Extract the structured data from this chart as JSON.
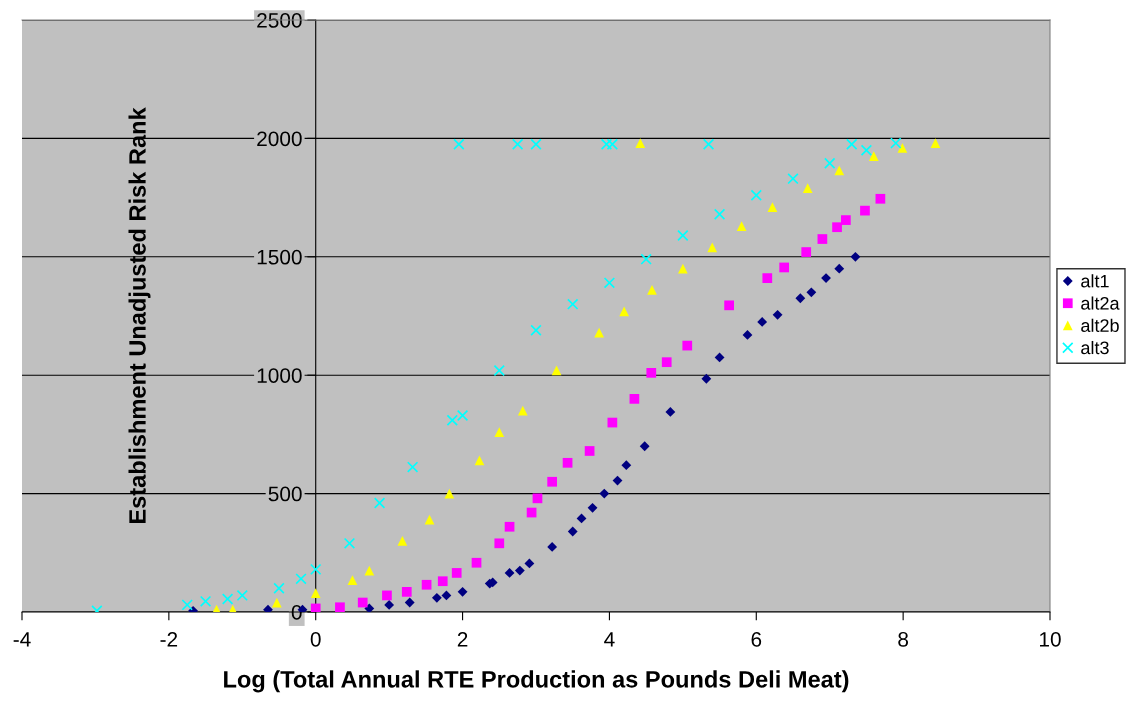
{
  "chart_data": {
    "type": "scatter",
    "xlabel": "Log (Total Annual RTE Production as Pounds Deli Meat)",
    "ylabel": "Establishment Unadjusted Risk Rank",
    "xlim": [
      -4,
      10
    ],
    "ylim": [
      0,
      2500
    ],
    "xticks": [
      -4,
      -2,
      0,
      2,
      4,
      6,
      8,
      10
    ],
    "yticks": [
      0,
      500,
      1000,
      1500,
      2000,
      2500
    ],
    "grid": "y",
    "legend": "right",
    "series": [
      {
        "name": "alt1",
        "color": "#000080",
        "marker": "diamond",
        "x": [
          -1.67,
          -0.65,
          -0.18,
          0.33,
          0.73,
          1.0,
          1.28,
          1.65,
          1.78,
          2.0,
          2.37,
          2.41,
          2.64,
          2.78,
          2.91,
          3.22,
          3.5,
          3.62,
          3.77,
          3.93,
          4.11,
          4.23,
          4.48,
          4.83,
          5.32,
          5.5,
          5.88,
          6.08,
          6.29,
          6.6,
          6.75,
          6.95,
          7.13,
          7.35
        ],
        "values": [
          5,
          10,
          10,
          null,
          15,
          30,
          40,
          60,
          70,
          85,
          120,
          125,
          165,
          175,
          205,
          275,
          340,
          395,
          440,
          500,
          555,
          620,
          700,
          845,
          985,
          1075,
          1170,
          1225,
          1255,
          1325,
          1350,
          1410,
          1450,
          1500
        ]
      },
      {
        "name": "alt2a",
        "color": "#ff00ff",
        "marker": "square",
        "x": [
          0,
          0.33,
          0.64,
          0.97,
          1.24,
          1.51,
          1.73,
          1.92,
          2.19,
          2.5,
          2.64,
          2.94,
          3.02,
          3.22,
          3.43,
          3.73,
          4.04,
          4.34,
          4.57,
          4.78,
          5.06,
          5.63,
          6.15,
          6.38,
          6.68,
          6.9,
          7.1,
          7.22,
          7.48,
          7.69
        ],
        "values": [
          15,
          20,
          40,
          70,
          85,
          115,
          130,
          165,
          208,
          290,
          360,
          420,
          480,
          550,
          630,
          680,
          800,
          900,
          1010,
          1055,
          1125,
          1295,
          1410,
          1455,
          1520,
          1575,
          1625,
          1655,
          1695,
          1745
        ]
      },
      {
        "name": "alt2b",
        "color": "#ffff00",
        "marker": "triangle",
        "x": [
          -1.35,
          -1.13,
          -0.53,
          0,
          0.5,
          0.73,
          1.18,
          1.55,
          1.82,
          2.23,
          2.5,
          2.82,
          3.28,
          3.86,
          4.2,
          4.58,
          5.0,
          5.4,
          5.8,
          6.22,
          6.7,
          7.13,
          7.6,
          7.99,
          4.42,
          8.44
        ],
        "values": [
          10,
          10,
          40,
          80,
          135,
          175,
          300,
          390,
          500,
          640,
          760,
          850,
          1020,
          1180,
          1270,
          1360,
          1450,
          1540,
          1630,
          1710,
          1790,
          1865,
          1925,
          1960,
          1980,
          1980
        ]
      },
      {
        "name": "alt3",
        "color": "#00ffff",
        "marker": "cross",
        "x": [
          -2.98,
          -1.75,
          -1.5,
          -1.2,
          -1.0,
          -0.5,
          -0.2,
          0,
          0.46,
          0.87,
          1.32,
          1.86,
          2.0,
          2.5,
          3.0,
          3.5,
          4.0,
          4.5,
          5.0,
          5.5,
          6.0,
          6.5,
          7.0,
          7.5,
          7.9,
          1.95,
          2.75,
          3.0,
          3.96,
          4.04,
          5.35,
          7.3
        ],
        "values": [
          5,
          30,
          45,
          55,
          70,
          100,
          140,
          180,
          290,
          460,
          612,
          810,
          830,
          1020,
          1190,
          1300,
          1390,
          1490,
          1590,
          1680,
          1760,
          1830,
          1895,
          1950,
          1980,
          1975,
          1975,
          1975,
          1975,
          1975,
          1975,
          1975
        ]
      }
    ]
  }
}
